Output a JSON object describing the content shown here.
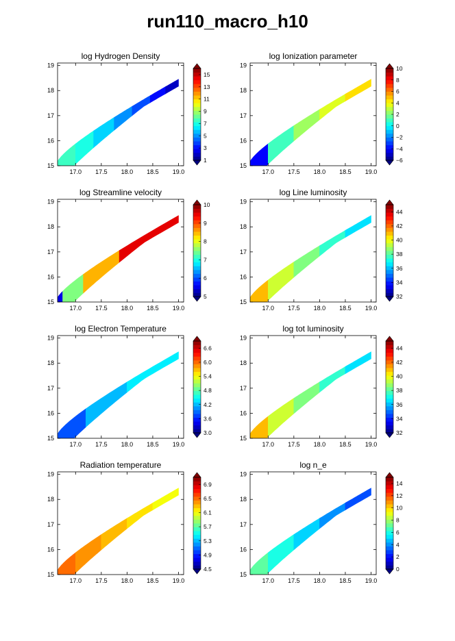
{
  "title": "run110_macro_h10",
  "chart_data": [
    {
      "type": "heatmap",
      "title": "log Hydrogen Density",
      "xticks": [
        "17.0",
        "17.5",
        "18.0",
        "18.5",
        "19.0"
      ],
      "yticks": [
        "15",
        "16",
        "17",
        "18",
        "19"
      ],
      "xlim": [
        16.65,
        19.1
      ],
      "ylim": [
        15,
        19.1
      ],
      "colorbar": {
        "ticks": [
          "1",
          "3",
          "5",
          "7",
          "9",
          "11",
          "13",
          "15"
        ],
        "range": [
          1,
          16
        ]
      },
      "segments": [
        {
          "x": [
            16.65,
            17.0
          ],
          "value": 7.5
        },
        {
          "x": [
            17.0,
            17.35
          ],
          "value": 7.0
        },
        {
          "x": [
            17.35,
            17.75
          ],
          "value": 6.0
        },
        {
          "x": [
            17.75,
            18.1
          ],
          "value": 5.0
        },
        {
          "x": [
            18.1,
            18.45
          ],
          "value": 4.0
        },
        {
          "x": [
            18.45,
            18.75
          ],
          "value": 3.0
        },
        {
          "x": [
            18.75,
            19.0
          ],
          "value": 2.0
        }
      ]
    },
    {
      "type": "heatmap",
      "title": "log Ionization parameter",
      "xticks": [
        "17.0",
        "17.5",
        "18.0",
        "18.5",
        "19.0"
      ],
      "yticks": [
        "15",
        "16",
        "17",
        "18",
        "19"
      ],
      "xlim": [
        16.65,
        19.1
      ],
      "ylim": [
        15,
        19.1
      ],
      "colorbar": {
        "ticks": [
          "10",
          "8",
          "6",
          "4",
          "2",
          "0",
          "−2",
          "−4",
          "−6"
        ],
        "range": [
          -6,
          10
        ]
      },
      "segments": [
        {
          "x": [
            16.65,
            17.0
          ],
          "value": -4.0
        },
        {
          "x": [
            17.0,
            17.5
          ],
          "value": 1.0
        },
        {
          "x": [
            17.5,
            18.0
          ],
          "value": 2.5
        },
        {
          "x": [
            18.0,
            18.5
          ],
          "value": 3.5
        },
        {
          "x": [
            18.5,
            19.0
          ],
          "value": 4.5
        }
      ]
    },
    {
      "type": "heatmap",
      "title": "log Streamline velocity",
      "xticks": [
        "17.0",
        "17.5",
        "18.0",
        "18.5",
        "19.0"
      ],
      "yticks": [
        "15",
        "16",
        "17",
        "18",
        "19"
      ],
      "xlim": [
        16.65,
        19.1
      ],
      "ylim": [
        15,
        19.1
      ],
      "colorbar": {
        "ticks": [
          "10",
          "9",
          "8",
          "7",
          "6",
          "5"
        ],
        "range": [
          5,
          10
        ]
      },
      "segments": [
        {
          "x": [
            16.65,
            16.75
          ],
          "value": 5.5
        },
        {
          "x": [
            16.75,
            17.15
          ],
          "value": 7.5
        },
        {
          "x": [
            17.15,
            17.85
          ],
          "value": 8.5
        },
        {
          "x": [
            17.85,
            19.0
          ],
          "value": 9.5
        }
      ]
    },
    {
      "type": "heatmap",
      "title": "log Line luminosity",
      "xticks": [
        "17.0",
        "17.5",
        "18.0",
        "18.5",
        "19.0"
      ],
      "yticks": [
        "15",
        "16",
        "17",
        "18",
        "19"
      ],
      "xlim": [
        16.65,
        19.1
      ],
      "ylim": [
        15,
        19.1
      ],
      "colorbar": {
        "ticks": [
          "44",
          "42",
          "40",
          "38",
          "36",
          "34",
          "32"
        ],
        "range": [
          32,
          45
        ]
      },
      "segments": [
        {
          "x": [
            16.65,
            17.0
          ],
          "value": 41.0
        },
        {
          "x": [
            17.0,
            17.5
          ],
          "value": 39.5
        },
        {
          "x": [
            17.5,
            18.0
          ],
          "value": 38.5
        },
        {
          "x": [
            18.0,
            18.5
          ],
          "value": 37.5
        },
        {
          "x": [
            18.5,
            19.0
          ],
          "value": 36.5
        }
      ]
    },
    {
      "type": "heatmap",
      "title": "log Electron Temperature",
      "xticks": [
        "17.0",
        "17.5",
        "18.0",
        "18.5",
        "19.0"
      ],
      "yticks": [
        "15",
        "16",
        "17",
        "18",
        "19"
      ],
      "xlim": [
        16.65,
        19.1
      ],
      "ylim": [
        15,
        19.1
      ],
      "colorbar": {
        "ticks": [
          "6.6",
          "6.0",
          "5.4",
          "4.8",
          "4.2",
          "3.6",
          "3.0"
        ],
        "range": [
          3.0,
          6.9
        ]
      },
      "segments": [
        {
          "x": [
            16.65,
            17.2
          ],
          "value": 3.8
        },
        {
          "x": [
            17.2,
            18.0
          ],
          "value": 4.2
        },
        {
          "x": [
            18.0,
            19.0
          ],
          "value": 4.4
        }
      ]
    },
    {
      "type": "heatmap",
      "title": "log tot luminosity",
      "xticks": [
        "17.0",
        "17.5",
        "18.0",
        "18.5",
        "19.0"
      ],
      "yticks": [
        "15",
        "16",
        "17",
        "18",
        "19"
      ],
      "xlim": [
        16.65,
        19.1
      ],
      "ylim": [
        15,
        19.1
      ],
      "colorbar": {
        "ticks": [
          "44",
          "42",
          "40",
          "38",
          "36",
          "34",
          "32"
        ],
        "range": [
          32,
          45
        ]
      },
      "segments": [
        {
          "x": [
            16.65,
            17.0
          ],
          "value": 41.0
        },
        {
          "x": [
            17.0,
            17.5
          ],
          "value": 39.5
        },
        {
          "x": [
            17.5,
            18.0
          ],
          "value": 38.5
        },
        {
          "x": [
            18.0,
            18.5
          ],
          "value": 37.5
        },
        {
          "x": [
            18.5,
            19.0
          ],
          "value": 36.5
        }
      ]
    },
    {
      "type": "heatmap",
      "title": "Radiation temperature",
      "xticks": [
        "17.0",
        "17.5",
        "18.0",
        "18.5",
        "19.0"
      ],
      "yticks": [
        "15",
        "16",
        "17",
        "18",
        "19"
      ],
      "xlim": [
        16.65,
        19.1
      ],
      "ylim": [
        15,
        19.1
      ],
      "colorbar": {
        "ticks": [
          "6.9",
          "6.5",
          "6.1",
          "5.7",
          "5.3",
          "4.9",
          "4.5"
        ],
        "range": [
          4.5,
          7.1
        ]
      },
      "segments": [
        {
          "x": [
            16.65,
            17.0
          ],
          "value": 6.5
        },
        {
          "x": [
            17.0,
            17.5
          ],
          "value": 6.4
        },
        {
          "x": [
            17.5,
            18.0
          ],
          "value": 6.3
        },
        {
          "x": [
            18.0,
            18.5
          ],
          "value": 6.2
        },
        {
          "x": [
            18.5,
            19.0
          ],
          "value": 6.1
        }
      ]
    },
    {
      "type": "heatmap",
      "title": "log n_e",
      "xticks": [
        "17.0",
        "17.5",
        "18.0",
        "18.5",
        "19.0"
      ],
      "yticks": [
        "15",
        "16",
        "17",
        "18",
        "19"
      ],
      "xlim": [
        16.65,
        19.1
      ],
      "ylim": [
        15,
        19.1
      ],
      "colorbar": {
        "ticks": [
          "14",
          "12",
          "10",
          "8",
          "6",
          "4",
          "2",
          "0"
        ],
        "range": [
          0,
          15
        ]
      },
      "segments": [
        {
          "x": [
            16.65,
            17.0
          ],
          "value": 7.0
        },
        {
          "x": [
            17.0,
            17.5
          ],
          "value": 6.0
        },
        {
          "x": [
            17.5,
            18.0
          ],
          "value": 5.0
        },
        {
          "x": [
            18.0,
            18.5
          ],
          "value": 4.0
        },
        {
          "x": [
            18.5,
            19.0
          ],
          "value": 3.0
        }
      ]
    }
  ]
}
